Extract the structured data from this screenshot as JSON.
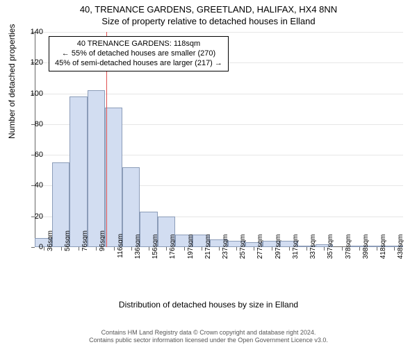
{
  "titles": {
    "main": "40, TRENANCE GARDENS, GREETLAND, HALIFAX, HX4 8NN",
    "sub": "Size of property relative to detached houses in Elland"
  },
  "axes": {
    "ylabel": "Number of detached properties",
    "xlabel": "Distribution of detached houses by size in Elland",
    "ylim": [
      0,
      140
    ],
    "ytick_step": 20,
    "xticks": [
      "36sqm",
      "56sqm",
      "76sqm",
      "96sqm",
      "116sqm",
      "136sqm",
      "156sqm",
      "176sqm",
      "197sqm",
      "217sqm",
      "237sqm",
      "257sqm",
      "277sqm",
      "297sqm",
      "317sqm",
      "337sqm",
      "357sqm",
      "378sqm",
      "398sqm",
      "418sqm",
      "438sqm"
    ]
  },
  "chart": {
    "type": "histogram",
    "bar_color": "#d2ddf1",
    "bar_border_color": "#8b9cb8",
    "grid_color": "#e6e6e6",
    "background_color": "#ffffff",
    "values": [
      6,
      55,
      98,
      102,
      91,
      52,
      23,
      20,
      8,
      8,
      5,
      4,
      3,
      4,
      4,
      1,
      2,
      0,
      1,
      1,
      1
    ],
    "marker": {
      "position_index": 4.1,
      "color": "#e05050"
    }
  },
  "annotation": {
    "line1": "40 TRENANCE GARDENS: 118sqm",
    "line2": "← 55% of detached houses are smaller (270)",
    "line3": "45% of semi-detached houses are larger (217) →"
  },
  "footer": {
    "line1": "Contains HM Land Registry data © Crown copyright and database right 2024.",
    "line2": "Contains public sector information licensed under the Open Government Licence v3.0."
  }
}
